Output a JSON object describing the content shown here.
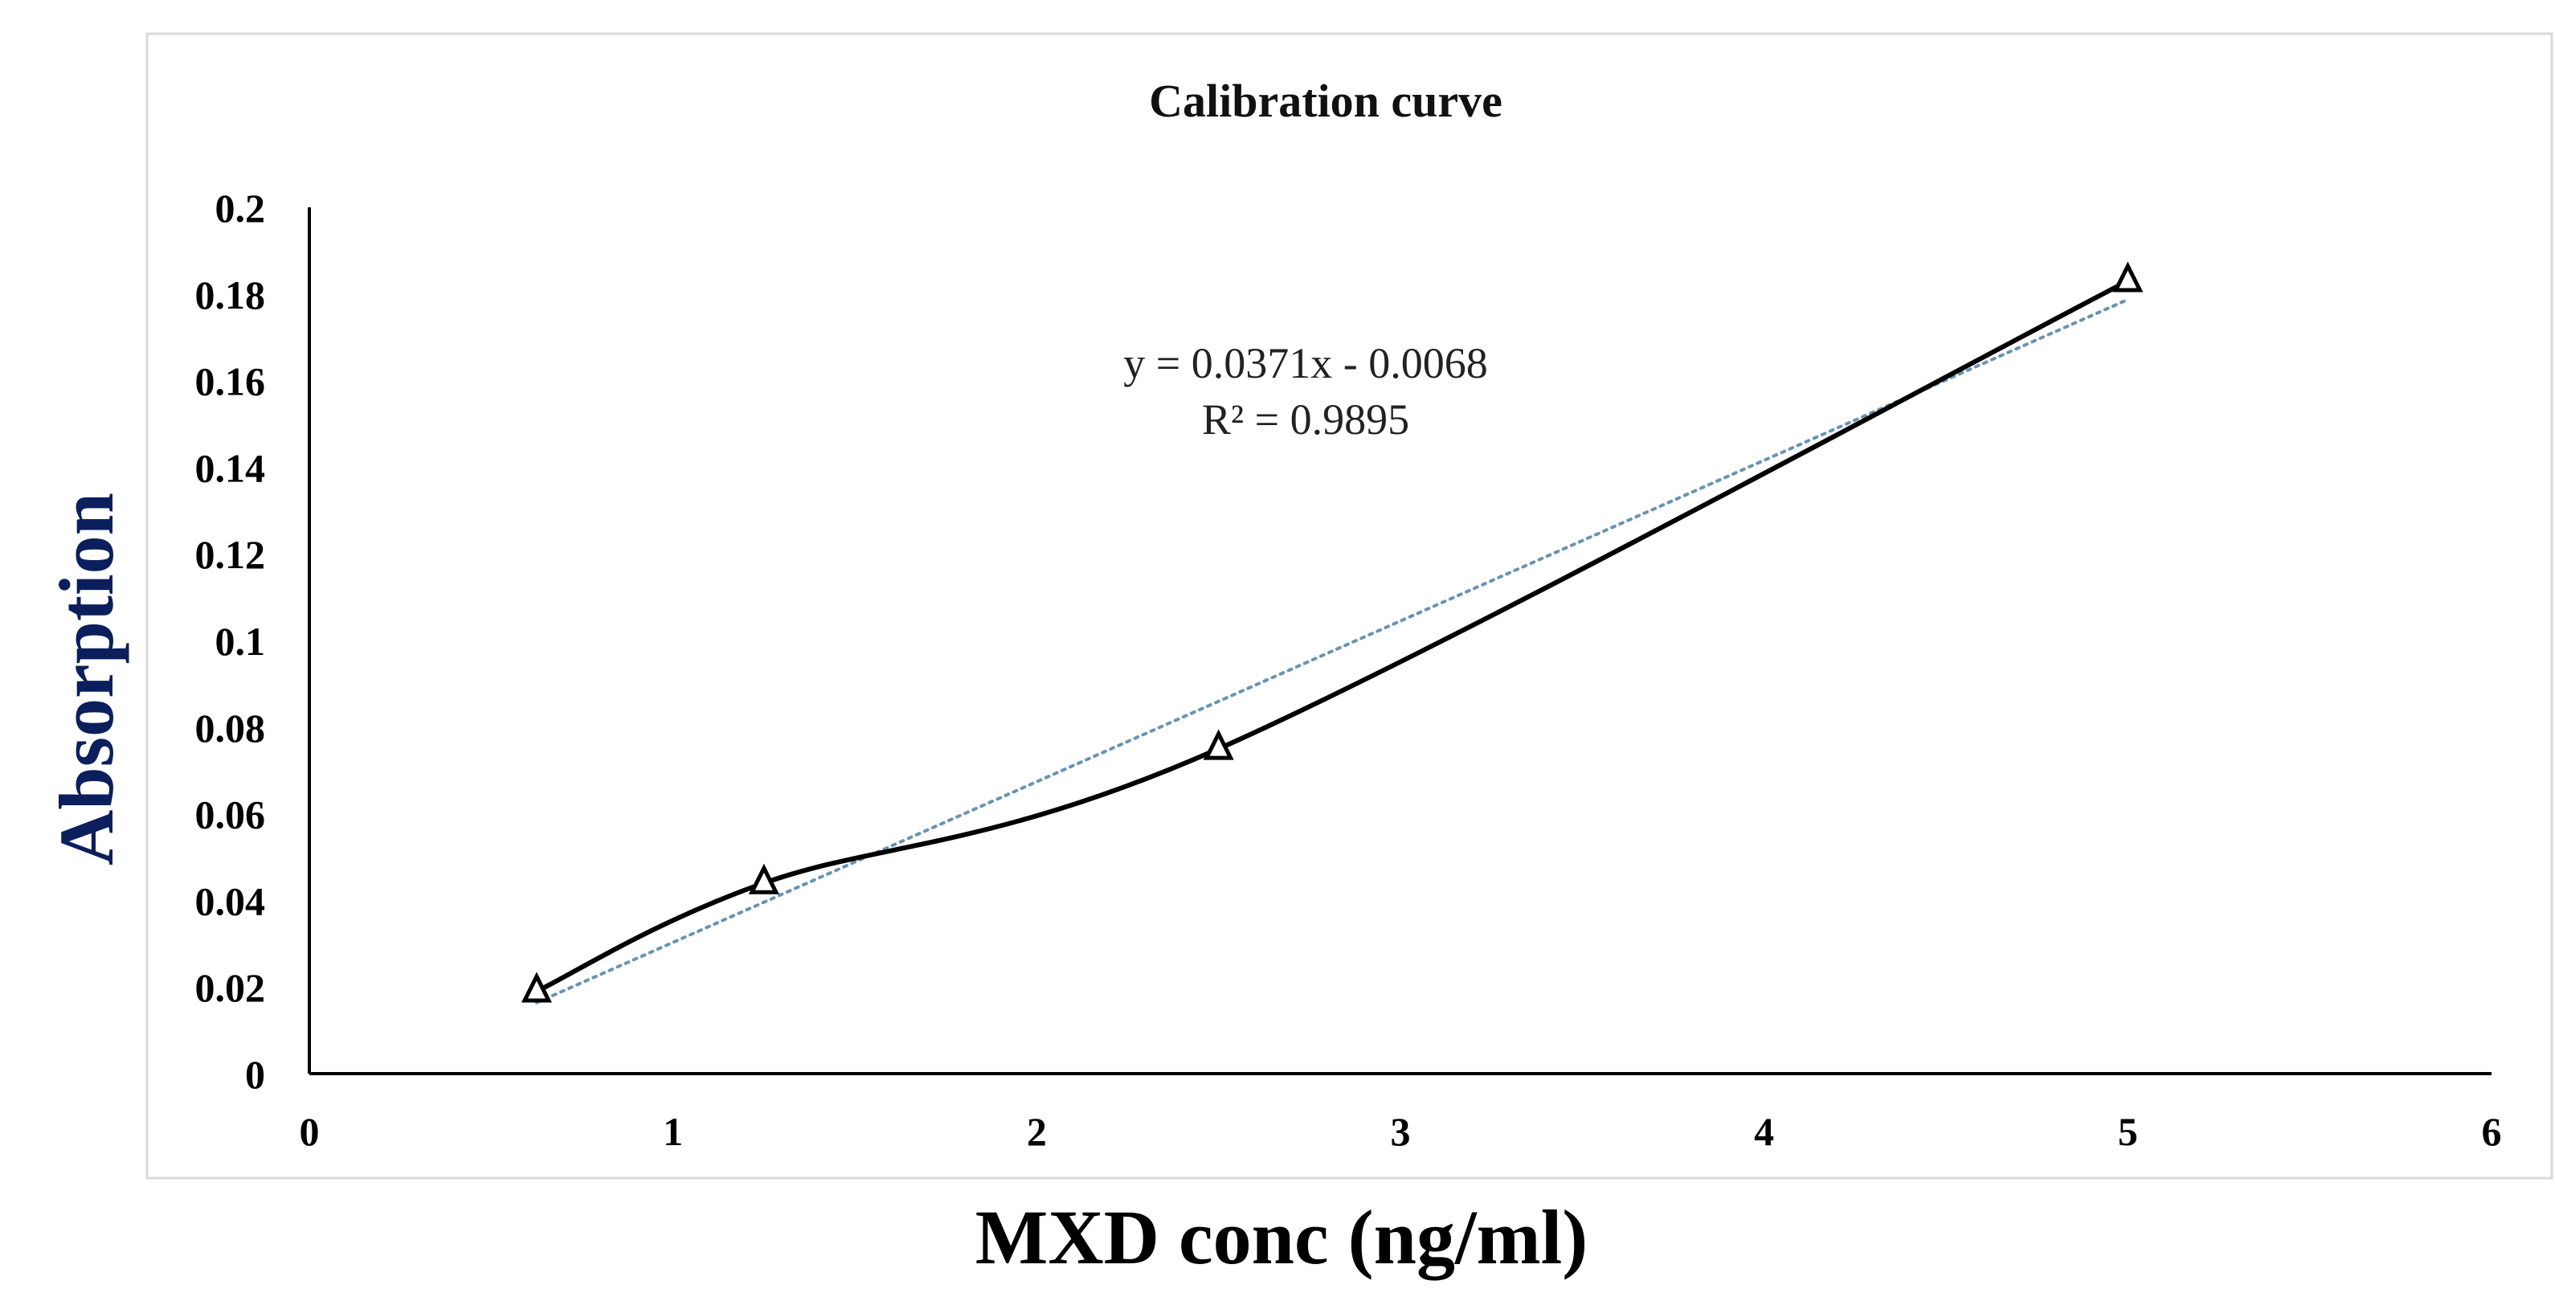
{
  "chart_data": {
    "type": "scatter",
    "title": "Calibration curve",
    "xlabel": "MXD conc (ng/ml)",
    "ylabel": "Absorption",
    "xlim": [
      0,
      6
    ],
    "ylim": [
      0,
      0.2
    ],
    "x_ticks": [
      0,
      1,
      2,
      3,
      4,
      5,
      6
    ],
    "x_tick_labels": [
      "0",
      "1",
      "2",
      "3",
      "4",
      "5",
      "6"
    ],
    "y_ticks": [
      0,
      0.02,
      0.04,
      0.06,
      0.08,
      0.1,
      0.12,
      0.14,
      0.16,
      0.18,
      0.2
    ],
    "y_tick_labels": [
      "0",
      "0.02",
      "0.04",
      "0.06",
      "0.08",
      "0.1",
      "0.12",
      "0.14",
      "0.16",
      "0.18",
      "0.2"
    ],
    "grid": false,
    "legend": "none",
    "series": [
      {
        "marker": "triangle-open",
        "line": "smoothed",
        "color": "#000000",
        "x": [
          0.625,
          1.25,
          2.5,
          5
        ],
        "y": [
          0.019,
          0.044,
          0.075,
          0.183
        ]
      }
    ],
    "trendline": {
      "type": "linear",
      "slope": 0.0371,
      "intercept": -0.0068,
      "style": "dotted",
      "color": "#6a93b0"
    },
    "annotations": [
      "y = 0.0371x - 0.0068",
      "R² = 0.9895"
    ],
    "title_color": "#111111",
    "ylabel_color": "#0b1f5c",
    "xlabel_color": "#000000"
  }
}
